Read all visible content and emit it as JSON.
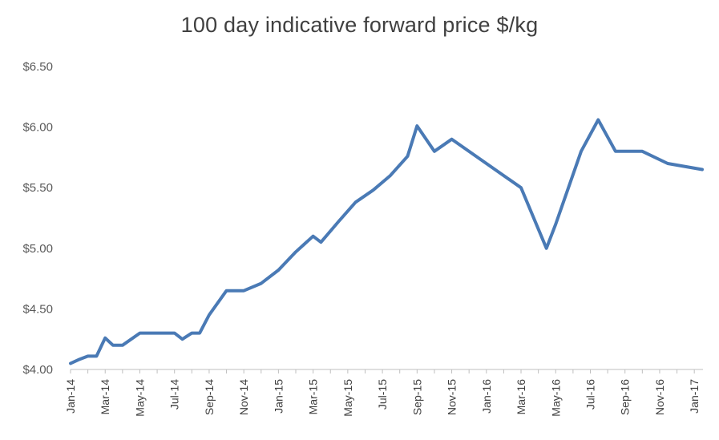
{
  "chart_data": {
    "type": "line",
    "title": "100 day indicative forward price $/kg",
    "xlabel": "",
    "ylabel": "",
    "ylim": [
      4.0,
      6.5
    ],
    "y_tick_labels": [
      "$4.00",
      "$4.50",
      "$5.00",
      "$5.50",
      "$6.00",
      "$6.50"
    ],
    "y_tick_values": [
      4.0,
      4.5,
      5.0,
      5.5,
      6.0,
      6.5
    ],
    "x_tick_labels": [
      "Jan-14",
      "Mar-14",
      "May-14",
      "Jul-14",
      "Sep-14",
      "Nov-14",
      "Jan-15",
      "Mar-15",
      "May-15",
      "Jul-15",
      "Sep-15",
      "Nov-15",
      "Jan-16",
      "Mar-16",
      "May-16",
      "Jul-16",
      "Sep-16",
      "Nov-16",
      "Jan-17"
    ],
    "xlim": [
      "2014-01",
      "2017-01"
    ],
    "grid": false,
    "legend": "none",
    "series": [
      {
        "color": "#4a7ab5",
        "points": [
          {
            "x": "2014-01-01",
            "y": 4.05
          },
          {
            "x": "2014-01-15",
            "y": 4.08
          },
          {
            "x": "2014-02-01",
            "y": 4.11
          },
          {
            "x": "2014-02-15",
            "y": 4.11
          },
          {
            "x": "2014-03-01",
            "y": 4.26
          },
          {
            "x": "2014-03-15",
            "y": 4.2
          },
          {
            "x": "2014-04-01",
            "y": 4.2
          },
          {
            "x": "2014-05-01",
            "y": 4.3
          },
          {
            "x": "2014-06-01",
            "y": 4.3
          },
          {
            "x": "2014-07-01",
            "y": 4.3
          },
          {
            "x": "2014-07-15",
            "y": 4.25
          },
          {
            "x": "2014-08-01",
            "y": 4.3
          },
          {
            "x": "2014-08-15",
            "y": 4.3
          },
          {
            "x": "2014-09-01",
            "y": 4.45
          },
          {
            "x": "2014-10-01",
            "y": 4.65
          },
          {
            "x": "2014-11-01",
            "y": 4.65
          },
          {
            "x": "2014-12-01",
            "y": 4.71
          },
          {
            "x": "2015-01-01",
            "y": 4.82
          },
          {
            "x": "2015-02-01",
            "y": 4.97
          },
          {
            "x": "2015-03-01",
            "y": 5.1
          },
          {
            "x": "2015-03-15",
            "y": 5.05
          },
          {
            "x": "2015-04-15",
            "y": 5.22
          },
          {
            "x": "2015-05-15",
            "y": 5.38
          },
          {
            "x": "2015-06-15",
            "y": 5.48
          },
          {
            "x": "2015-07-15",
            "y": 5.6
          },
          {
            "x": "2015-08-15",
            "y": 5.76
          },
          {
            "x": "2015-09-01",
            "y": 6.01
          },
          {
            "x": "2015-10-01",
            "y": 5.8
          },
          {
            "x": "2015-11-01",
            "y": 5.9
          },
          {
            "x": "2016-01-01",
            "y": 5.7
          },
          {
            "x": "2016-03-01",
            "y": 5.5
          },
          {
            "x": "2016-04-15",
            "y": 5.0
          },
          {
            "x": "2016-05-01",
            "y": 5.2
          },
          {
            "x": "2016-06-15",
            "y": 5.8
          },
          {
            "x": "2016-07-15",
            "y": 6.06
          },
          {
            "x": "2016-08-15",
            "y": 5.8
          },
          {
            "x": "2016-10-01",
            "y": 5.8
          },
          {
            "x": "2016-11-15",
            "y": 5.7
          },
          {
            "x": "2017-01-15",
            "y": 5.65
          }
        ]
      }
    ]
  }
}
